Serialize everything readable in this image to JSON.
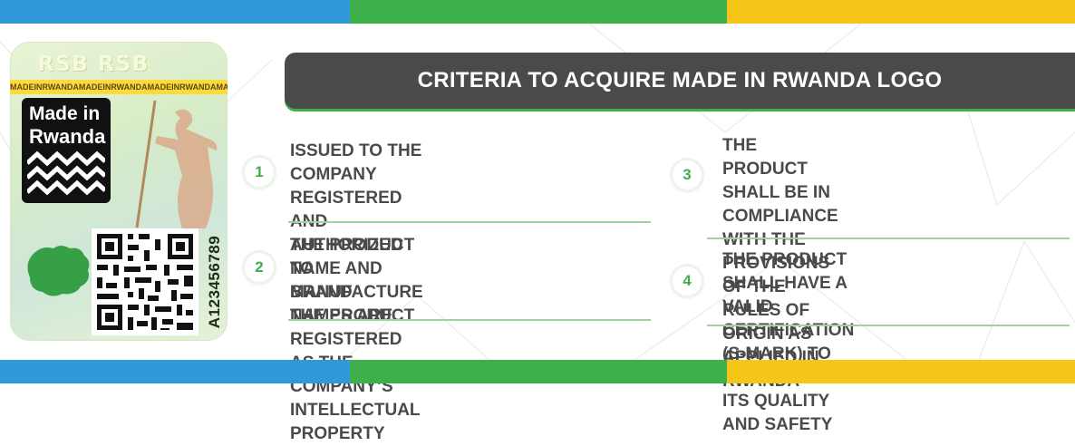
{
  "colors": {
    "blue": "#2e9ad8",
    "green": "#3db04b",
    "yellow": "#f5c518",
    "title_bg": "#4a4a4a",
    "text": "#4a4a4a",
    "black_logo": "#111111"
  },
  "label": {
    "rsb_text": "RSB RSB",
    "strip_text": "MADEINRWANDAMADEINRWANDAMADEINRWANDAMADEINRWANDAMADEINRW",
    "logo_line1": "Made in",
    "logo_line2": "Rwanda",
    "serial": "A123456789",
    "icons": [
      "zigzag-pattern-icon",
      "qr-code-icon",
      "rwanda-map-icon",
      "dancer-figure-icon"
    ]
  },
  "title": "CRITERIA TO ACQUIRE MADE IN RWANDA LOGO",
  "criteria": [
    {
      "number": "1",
      "lines": [
        "ISSUED TO THE COMPANY REGISTERED",
        "AND AUTHORIZED TO MANUFACTURE",
        "THE PRODUCT"
      ]
    },
    {
      "number": "2",
      "lines": [
        "THE PRODUCT NAME AND BRAND",
        "NAMES ARE REGISTERED AS THE",
        "COMPANY’S INTELLECTUAL PROPERTY"
      ]
    },
    {
      "number": "3",
      "lines": [
        "THE PRODUCT SHALL BE IN",
        "COMPLIANCE WITH THE PROVISIONS",
        "OF THE RULES OF ORIGIN AS",
        "APPLIED IN RWANDA"
      ]
    },
    {
      "number": "4",
      "lines": [
        "THE PRODUCT SHALL HAVE A VALID",
        "CERTIFICATION (S-MARK) TO ATTEST",
        "ITS QUALITY AND SAFETY"
      ]
    }
  ]
}
